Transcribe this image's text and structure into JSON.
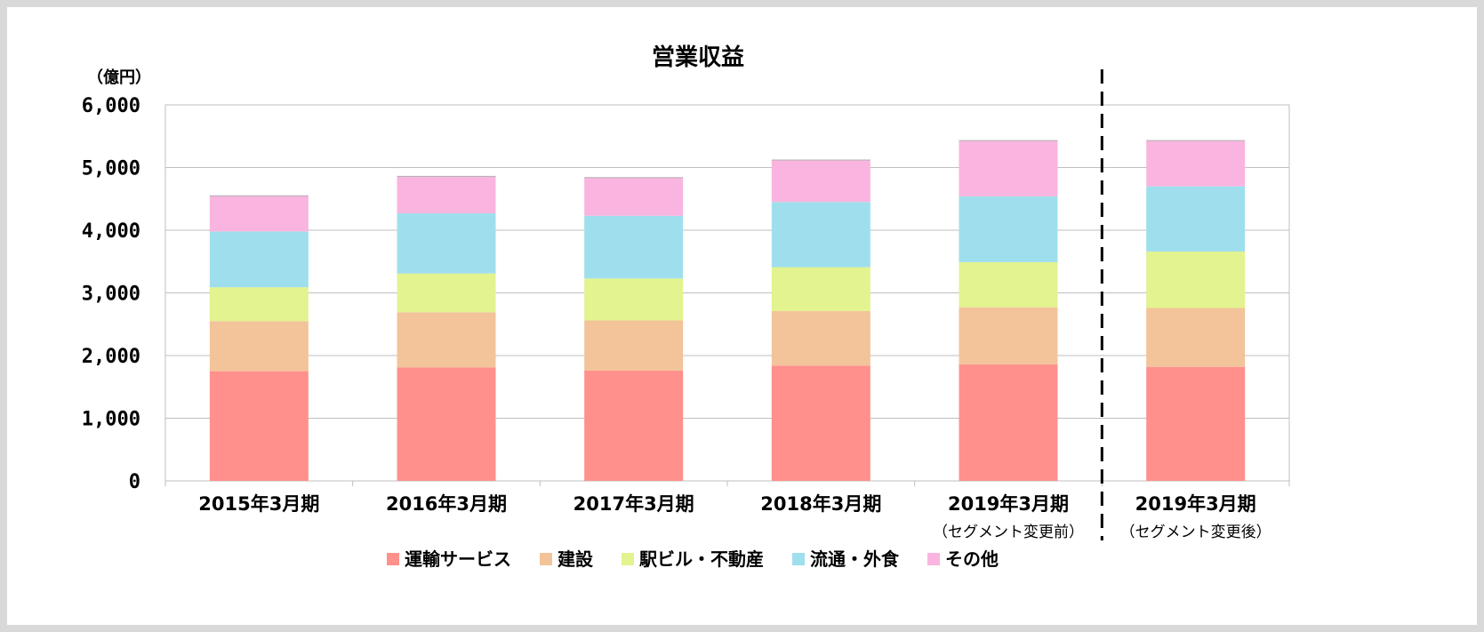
{
  "chart_data": {
    "type": "bar",
    "stacked": true,
    "title": "営業収益",
    "unit_label": "（億円）",
    "ylim": [
      0,
      6000
    ],
    "yticks": [
      0,
      1000,
      2000,
      3000,
      4000,
      5000,
      6000
    ],
    "ytick_labels": [
      "0",
      "1,000",
      "2,000",
      "3,000",
      "4,000",
      "5,000",
      "6,000"
    ],
    "grid": true,
    "legend_position": "bottom",
    "categories": [
      {
        "label": "2015年3月期",
        "sublabel": ""
      },
      {
        "label": "2016年3月期",
        "sublabel": ""
      },
      {
        "label": "2017年3月期",
        "sublabel": ""
      },
      {
        "label": "2018年3月期",
        "sublabel": ""
      },
      {
        "label": "2019年3月期",
        "sublabel": "（セグメント変更前）"
      },
      {
        "label": "2019年3月期",
        "sublabel": "（セグメント変更後）"
      }
    ],
    "divider_after_category": 4,
    "series": [
      {
        "name": "運輸サービス",
        "color": "#ff908c",
        "values": [
          1750,
          1810,
          1760,
          1840,
          1860,
          1820
        ]
      },
      {
        "name": "建設",
        "color": "#f3c399",
        "values": [
          800,
          880,
          800,
          870,
          910,
          940
        ]
      },
      {
        "name": "駅ビル・不動産",
        "color": "#e2f38f",
        "values": [
          540,
          620,
          670,
          700,
          720,
          900
        ]
      },
      {
        "name": "流通・外食",
        "color": "#9fdfed",
        "values": [
          890,
          960,
          1000,
          1040,
          1050,
          1040
        ]
      },
      {
        "name": "その他",
        "color": "#f9b5df",
        "values": [
          570,
          590,
          610,
          670,
          890,
          730
        ]
      }
    ]
  }
}
